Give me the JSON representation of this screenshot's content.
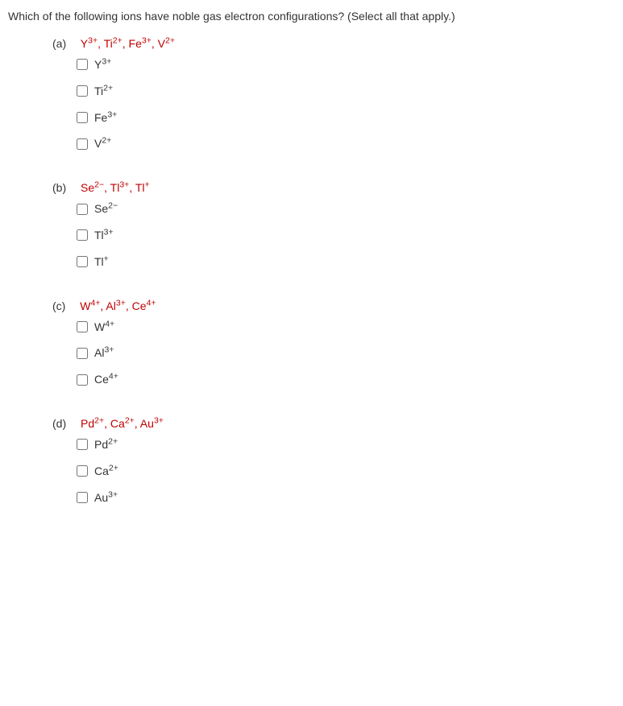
{
  "question": "Which of the following ions have noble gas electron configurations? (Select all that apply.)",
  "highlight_color": "#c00000",
  "text_color": "#333333",
  "parts": {
    "a": {
      "letter": "(a)",
      "ions_html": "Y<sup>3+</sup>, Ti<sup>2+</sup>, Fe<sup>3+</sup>, V<sup>2+</sup>",
      "options": [
        {
          "html": "Y<sup>3+</sup>"
        },
        {
          "html": "Ti<sup>2+</sup>"
        },
        {
          "html": "Fe<sup>3+</sup>"
        },
        {
          "html": "V<sup>2+</sup>"
        }
      ]
    },
    "b": {
      "letter": "(b)",
      "ions_html": "Se<sup>2−</sup>, Tl<sup>3+</sup>, Tl<sup>+</sup>",
      "options": [
        {
          "html": "Se<sup>2−</sup>"
        },
        {
          "html": "Tl<sup>3+</sup>"
        },
        {
          "html": "Tl<sup>+</sup>"
        }
      ]
    },
    "c": {
      "letter": "(c)",
      "ions_html": "W<sup>4+</sup>, Al<sup>3+</sup>, Ce<sup>4+</sup>",
      "options": [
        {
          "html": "W<sup>4+</sup>"
        },
        {
          "html": "Al<sup>3+</sup>"
        },
        {
          "html": "Ce<sup>4+</sup>"
        }
      ]
    },
    "d": {
      "letter": "(d)",
      "ions_html": "Pd<sup>2+</sup>, Ca<sup>2+</sup>, Au<sup>3+</sup>",
      "options": [
        {
          "html": "Pd<sup>2+</sup>"
        },
        {
          "html": "Ca<sup>2+</sup>"
        },
        {
          "html": "Au<sup>3+</sup>"
        }
      ]
    }
  }
}
